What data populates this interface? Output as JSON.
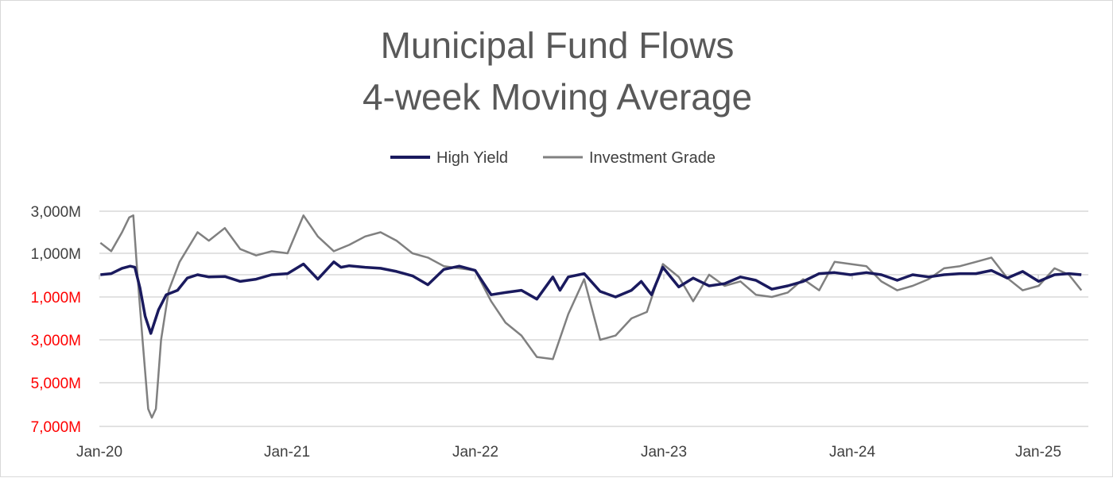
{
  "chart_data": {
    "type": "line",
    "title": "Municipal Fund Flows",
    "subtitle": "4-week Moving Average",
    "xlabel": "",
    "ylabel": "",
    "x_tick_labels": [
      "Jan-20",
      "Jan-21",
      "Jan-22",
      "Jan-23",
      "Jan-24",
      "Jan-25"
    ],
    "x_range": [
      "2020-01",
      "2025-04"
    ],
    "y_tick_labels": [
      "3,000M",
      "1,000M",
      "1,000M",
      "3,000M",
      "5,000M",
      "7,000M"
    ],
    "y_tick_values": [
      3000,
      1000,
      -1000,
      -3000,
      -5000,
      -7000
    ],
    "y_tick_colors": [
      "#404040",
      "#404040",
      "#ff0000",
      "#ff0000",
      "#ff0000",
      "#ff0000"
    ],
    "ylim": [
      -7000,
      3000
    ],
    "grid": true,
    "legend_position": "top",
    "series": [
      {
        "name": "High Yield",
        "color": "#1a1a5e",
        "points": [
          [
            "2020-01-03",
            0
          ],
          [
            "2020-01-24",
            50
          ],
          [
            "2020-02-14",
            300
          ],
          [
            "2020-03-01",
            400
          ],
          [
            "2020-03-10",
            350
          ],
          [
            "2020-03-20",
            -600
          ],
          [
            "2020-03-30",
            -1900
          ],
          [
            "2020-04-10",
            -2700
          ],
          [
            "2020-04-25",
            -1600
          ],
          [
            "2020-05-10",
            -900
          ],
          [
            "2020-06-01",
            -700
          ],
          [
            "2020-06-20",
            -150
          ],
          [
            "2020-07-10",
            0
          ],
          [
            "2020-08-01",
            -100
          ],
          [
            "2020-09-01",
            -80
          ],
          [
            "2020-10-01",
            -300
          ],
          [
            "2020-11-01",
            -200
          ],
          [
            "2020-12-01",
            0
          ],
          [
            "2021-01-01",
            50
          ],
          [
            "2021-02-01",
            500
          ],
          [
            "2021-03-01",
            -200
          ],
          [
            "2021-04-01",
            600
          ],
          [
            "2021-04-15",
            350
          ],
          [
            "2021-05-01",
            420
          ],
          [
            "2021-06-01",
            350
          ],
          [
            "2021-07-01",
            300
          ],
          [
            "2021-08-01",
            150
          ],
          [
            "2021-09-01",
            -50
          ],
          [
            "2021-10-01",
            -450
          ],
          [
            "2021-11-01",
            250
          ],
          [
            "2021-12-01",
            400
          ],
          [
            "2022-01-01",
            200
          ],
          [
            "2022-02-01",
            -900
          ],
          [
            "2022-03-01",
            -800
          ],
          [
            "2022-04-01",
            -700
          ],
          [
            "2022-05-01",
            -1100
          ],
          [
            "2022-06-01",
            -100
          ],
          [
            "2022-06-15",
            -700
          ],
          [
            "2022-07-01",
            -100
          ],
          [
            "2022-08-01",
            50
          ],
          [
            "2022-09-01",
            -750
          ],
          [
            "2022-10-01",
            -1000
          ],
          [
            "2022-11-01",
            -700
          ],
          [
            "2022-11-20",
            -300
          ],
          [
            "2022-12-10",
            -900
          ],
          [
            "2023-01-01",
            350
          ],
          [
            "2023-02-01",
            -550
          ],
          [
            "2023-03-01",
            -150
          ],
          [
            "2023-04-01",
            -500
          ],
          [
            "2023-05-01",
            -400
          ],
          [
            "2023-06-01",
            -100
          ],
          [
            "2023-07-01",
            -250
          ],
          [
            "2023-08-01",
            -650
          ],
          [
            "2023-09-01",
            -500
          ],
          [
            "2023-10-01",
            -300
          ],
          [
            "2023-11-01",
            50
          ],
          [
            "2023-12-01",
            100
          ],
          [
            "2024-01-01",
            0
          ],
          [
            "2024-02-01",
            100
          ],
          [
            "2024-03-01",
            0
          ],
          [
            "2024-04-01",
            -250
          ],
          [
            "2024-05-01",
            0
          ],
          [
            "2024-06-01",
            -100
          ],
          [
            "2024-07-01",
            0
          ],
          [
            "2024-08-01",
            50
          ],
          [
            "2024-09-01",
            50
          ],
          [
            "2024-10-01",
            200
          ],
          [
            "2024-11-01",
            -150
          ],
          [
            "2024-12-01",
            150
          ],
          [
            "2025-01-01",
            -300
          ],
          [
            "2025-02-01",
            0
          ],
          [
            "2025-03-01",
            50
          ],
          [
            "2025-03-25",
            0
          ]
        ]
      },
      {
        "name": "Investment Grade",
        "color": "#808080",
        "points": [
          [
            "2020-01-03",
            1500
          ],
          [
            "2020-01-24",
            1100
          ],
          [
            "2020-02-14",
            2000
          ],
          [
            "2020-02-28",
            3300
          ],
          [
            "2020-03-07",
            2800
          ],
          [
            "2020-03-15",
            0
          ],
          [
            "2020-03-25",
            -3000
          ],
          [
            "2020-04-05",
            -6200
          ],
          [
            "2020-04-12",
            -6600
          ],
          [
            "2020-04-20",
            -6200
          ],
          [
            "2020-04-30",
            -3000
          ],
          [
            "2020-05-15",
            -700
          ],
          [
            "2020-06-05",
            600
          ],
          [
            "2020-07-10",
            2000
          ],
          [
            "2020-08-01",
            1600
          ],
          [
            "2020-09-01",
            2200
          ],
          [
            "2020-10-01",
            1200
          ],
          [
            "2020-11-01",
            900
          ],
          [
            "2020-12-01",
            1100
          ],
          [
            "2021-01-01",
            1000
          ],
          [
            "2021-02-01",
            2800
          ],
          [
            "2021-03-01",
            1800
          ],
          [
            "2021-04-01",
            1100
          ],
          [
            "2021-05-01",
            1400
          ],
          [
            "2021-06-01",
            1800
          ],
          [
            "2021-07-01",
            2000
          ],
          [
            "2021-08-01",
            1600
          ],
          [
            "2021-09-01",
            1000
          ],
          [
            "2021-10-01",
            800
          ],
          [
            "2021-11-01",
            400
          ],
          [
            "2021-12-01",
            300
          ],
          [
            "2022-01-01",
            200
          ],
          [
            "2022-02-01",
            -1200
          ],
          [
            "2022-03-01",
            -2200
          ],
          [
            "2022-04-01",
            -2800
          ],
          [
            "2022-05-01",
            -3800
          ],
          [
            "2022-06-01",
            -3900
          ],
          [
            "2022-07-01",
            -1800
          ],
          [
            "2022-08-01",
            -200
          ],
          [
            "2022-09-01",
            -3000
          ],
          [
            "2022-10-01",
            -2800
          ],
          [
            "2022-11-01",
            -2000
          ],
          [
            "2022-12-01",
            -1700
          ],
          [
            "2023-01-01",
            500
          ],
          [
            "2023-02-01",
            -100
          ],
          [
            "2023-03-01",
            -1200
          ],
          [
            "2023-04-01",
            0
          ],
          [
            "2023-05-01",
            -500
          ],
          [
            "2023-06-01",
            -300
          ],
          [
            "2023-07-01",
            -900
          ],
          [
            "2023-08-01",
            -1000
          ],
          [
            "2023-09-01",
            -800
          ],
          [
            "2023-10-01",
            -200
          ],
          [
            "2023-11-01",
            -700
          ],
          [
            "2023-12-01",
            600
          ],
          [
            "2024-01-01",
            500
          ],
          [
            "2024-02-01",
            400
          ],
          [
            "2024-03-01",
            -300
          ],
          [
            "2024-04-01",
            -700
          ],
          [
            "2024-05-01",
            -500
          ],
          [
            "2024-06-01",
            -200
          ],
          [
            "2024-07-01",
            300
          ],
          [
            "2024-08-01",
            400
          ],
          [
            "2024-09-01",
            600
          ],
          [
            "2024-10-01",
            800
          ],
          [
            "2024-11-01",
            -150
          ],
          [
            "2024-12-01",
            -700
          ],
          [
            "2025-01-01",
            -500
          ],
          [
            "2025-02-01",
            300
          ],
          [
            "2025-03-01",
            0
          ],
          [
            "2025-03-25",
            -700
          ]
        ]
      }
    ]
  }
}
